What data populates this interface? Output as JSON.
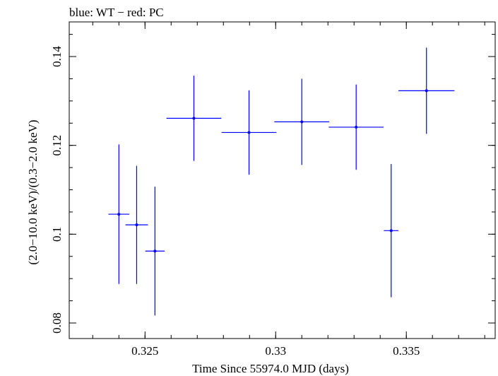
{
  "chart_data": {
    "type": "scatter",
    "title": "blue: WT − red: PC",
    "xlabel": "Time Since 55974.0 MJD (days)",
    "ylabel": "(2.0−10.0 keV)/(0.3−2.0 keV)",
    "xlim": [
      0.3221,
      0.3384
    ],
    "ylim": [
      0.0765,
      0.1478
    ],
    "x_ticks": [
      {
        "value": 0.325,
        "label": "0.325"
      },
      {
        "value": 0.33,
        "label": "0.33"
      },
      {
        "value": 0.335,
        "label": "0.335"
      }
    ],
    "y_ticks": [
      {
        "value": 0.08,
        "label": "0.08"
      },
      {
        "value": 0.1,
        "label": "0.1"
      },
      {
        "value": 0.12,
        "label": "0.12"
      },
      {
        "value": 0.14,
        "label": "0.14"
      }
    ],
    "x_minor_step": 0.001,
    "y_minor_step": 0.005,
    "grid": false,
    "series": [
      {
        "color": "#0000ff",
        "points": [
          {
            "x": 0.324,
            "y": 0.1045,
            "xerr_low": 0.0004,
            "xerr_high": 0.0004,
            "yerr_low": 0.0157,
            "yerr_high": 0.0157
          },
          {
            "x": 0.32468,
            "y": 0.1021,
            "xerr_low": 0.00043,
            "xerr_high": 0.00043,
            "yerr_low": 0.0133,
            "yerr_high": 0.0133
          },
          {
            "x": 0.32538,
            "y": 0.0962,
            "xerr_low": 0.00037,
            "xerr_high": 0.00037,
            "yerr_low": 0.0145,
            "yerr_high": 0.0145
          },
          {
            "x": 0.32687,
            "y": 0.1261,
            "xerr_low": 0.00105,
            "xerr_high": 0.00105,
            "yerr_low": 0.0096,
            "yerr_high": 0.0096
          },
          {
            "x": 0.32898,
            "y": 0.1229,
            "xerr_low": 0.00105,
            "xerr_high": 0.00105,
            "yerr_low": 0.0095,
            "yerr_high": 0.0095
          },
          {
            "x": 0.331,
            "y": 0.1253,
            "xerr_low": 0.00105,
            "xerr_high": 0.00105,
            "yerr_low": 0.0097,
            "yerr_high": 0.0097
          },
          {
            "x": 0.33308,
            "y": 0.1241,
            "xerr_low": 0.00105,
            "xerr_high": 0.00105,
            "yerr_low": 0.0096,
            "yerr_high": 0.0096
          },
          {
            "x": 0.33442,
            "y": 0.1008,
            "xerr_low": 0.00028,
            "xerr_high": 0.00028,
            "yerr_low": 0.015,
            "yerr_high": 0.015
          },
          {
            "x": 0.33577,
            "y": 0.1323,
            "xerr_low": 0.00107,
            "xerr_high": 0.00107,
            "yerr_low": 0.0097,
            "yerr_high": 0.0097
          }
        ]
      }
    ]
  }
}
